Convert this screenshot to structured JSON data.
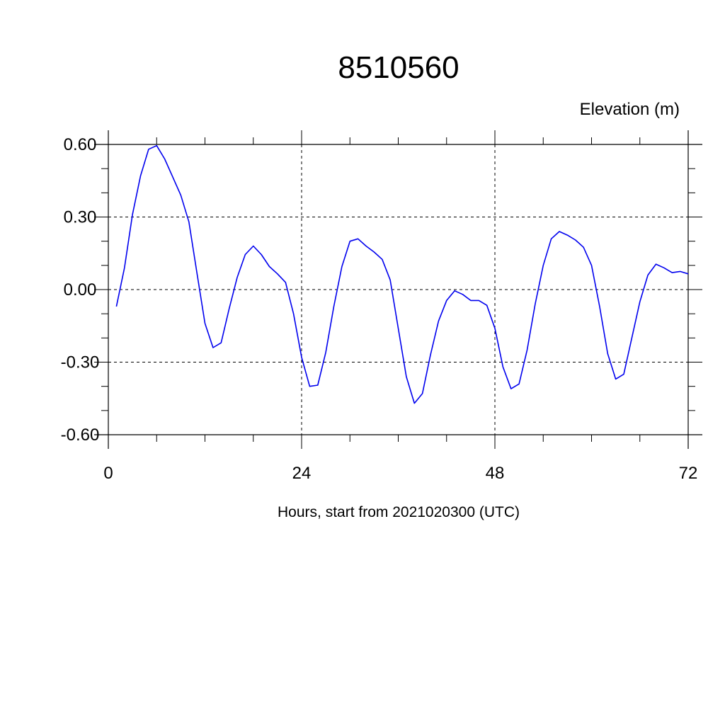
{
  "chart_data": {
    "type": "line",
    "title": "8510560",
    "ylabel": "Elevation (m)",
    "xlabel": "Hours, start from 2021020300 (UTC)",
    "xlim": [
      0,
      72
    ],
    "ylim": [
      -0.6,
      0.6
    ],
    "x_ticks": [
      0,
      24,
      48,
      72
    ],
    "x_tick_labels": [
      "0",
      "24",
      "48",
      "72"
    ],
    "y_ticks": [
      0.6,
      0.3,
      0.0,
      -0.3,
      -0.6
    ],
    "y_tick_labels": [
      "0.60",
      "0.30",
      "0.00",
      "-0.30",
      "-0.60"
    ],
    "grid": true,
    "series": [
      {
        "color": "#0000ee",
        "x": [
          1,
          2,
          3,
          4,
          5,
          6,
          7,
          8,
          9,
          10,
          11,
          12,
          13,
          14,
          15,
          16,
          17,
          18,
          19,
          20,
          21,
          22,
          23,
          24,
          25,
          26,
          27,
          28,
          29,
          30,
          31,
          32,
          33,
          34,
          35,
          36,
          37,
          38,
          39,
          40,
          41,
          42,
          43,
          44,
          45,
          46,
          47,
          48,
          49,
          50,
          51,
          52,
          53,
          54,
          55,
          56,
          57,
          58,
          59,
          60,
          61,
          62,
          63,
          64,
          65,
          66,
          67,
          68,
          69,
          70,
          71,
          72
        ],
        "y": [
          -0.07,
          0.09,
          0.31,
          0.47,
          0.58,
          0.595,
          0.54,
          0.465,
          0.39,
          0.28,
          0.07,
          -0.14,
          -0.24,
          -0.22,
          -0.08,
          0.05,
          0.145,
          0.18,
          0.145,
          0.095,
          0.065,
          0.03,
          -0.1,
          -0.28,
          -0.4,
          -0.395,
          -0.26,
          -0.07,
          0.095,
          0.2,
          0.21,
          0.18,
          0.155,
          0.125,
          0.04,
          -0.16,
          -0.36,
          -0.47,
          -0.43,
          -0.27,
          -0.13,
          -0.045,
          -0.005,
          -0.02,
          -0.045,
          -0.045,
          -0.065,
          -0.16,
          -0.32,
          -0.41,
          -0.39,
          -0.25,
          -0.06,
          0.1,
          0.21,
          0.24,
          0.225,
          0.205,
          0.175,
          0.1,
          -0.07,
          -0.265,
          -0.37,
          -0.35,
          -0.2,
          -0.05,
          0.06,
          0.105,
          0.09,
          0.07,
          0.075,
          0.065
        ]
      }
    ]
  }
}
